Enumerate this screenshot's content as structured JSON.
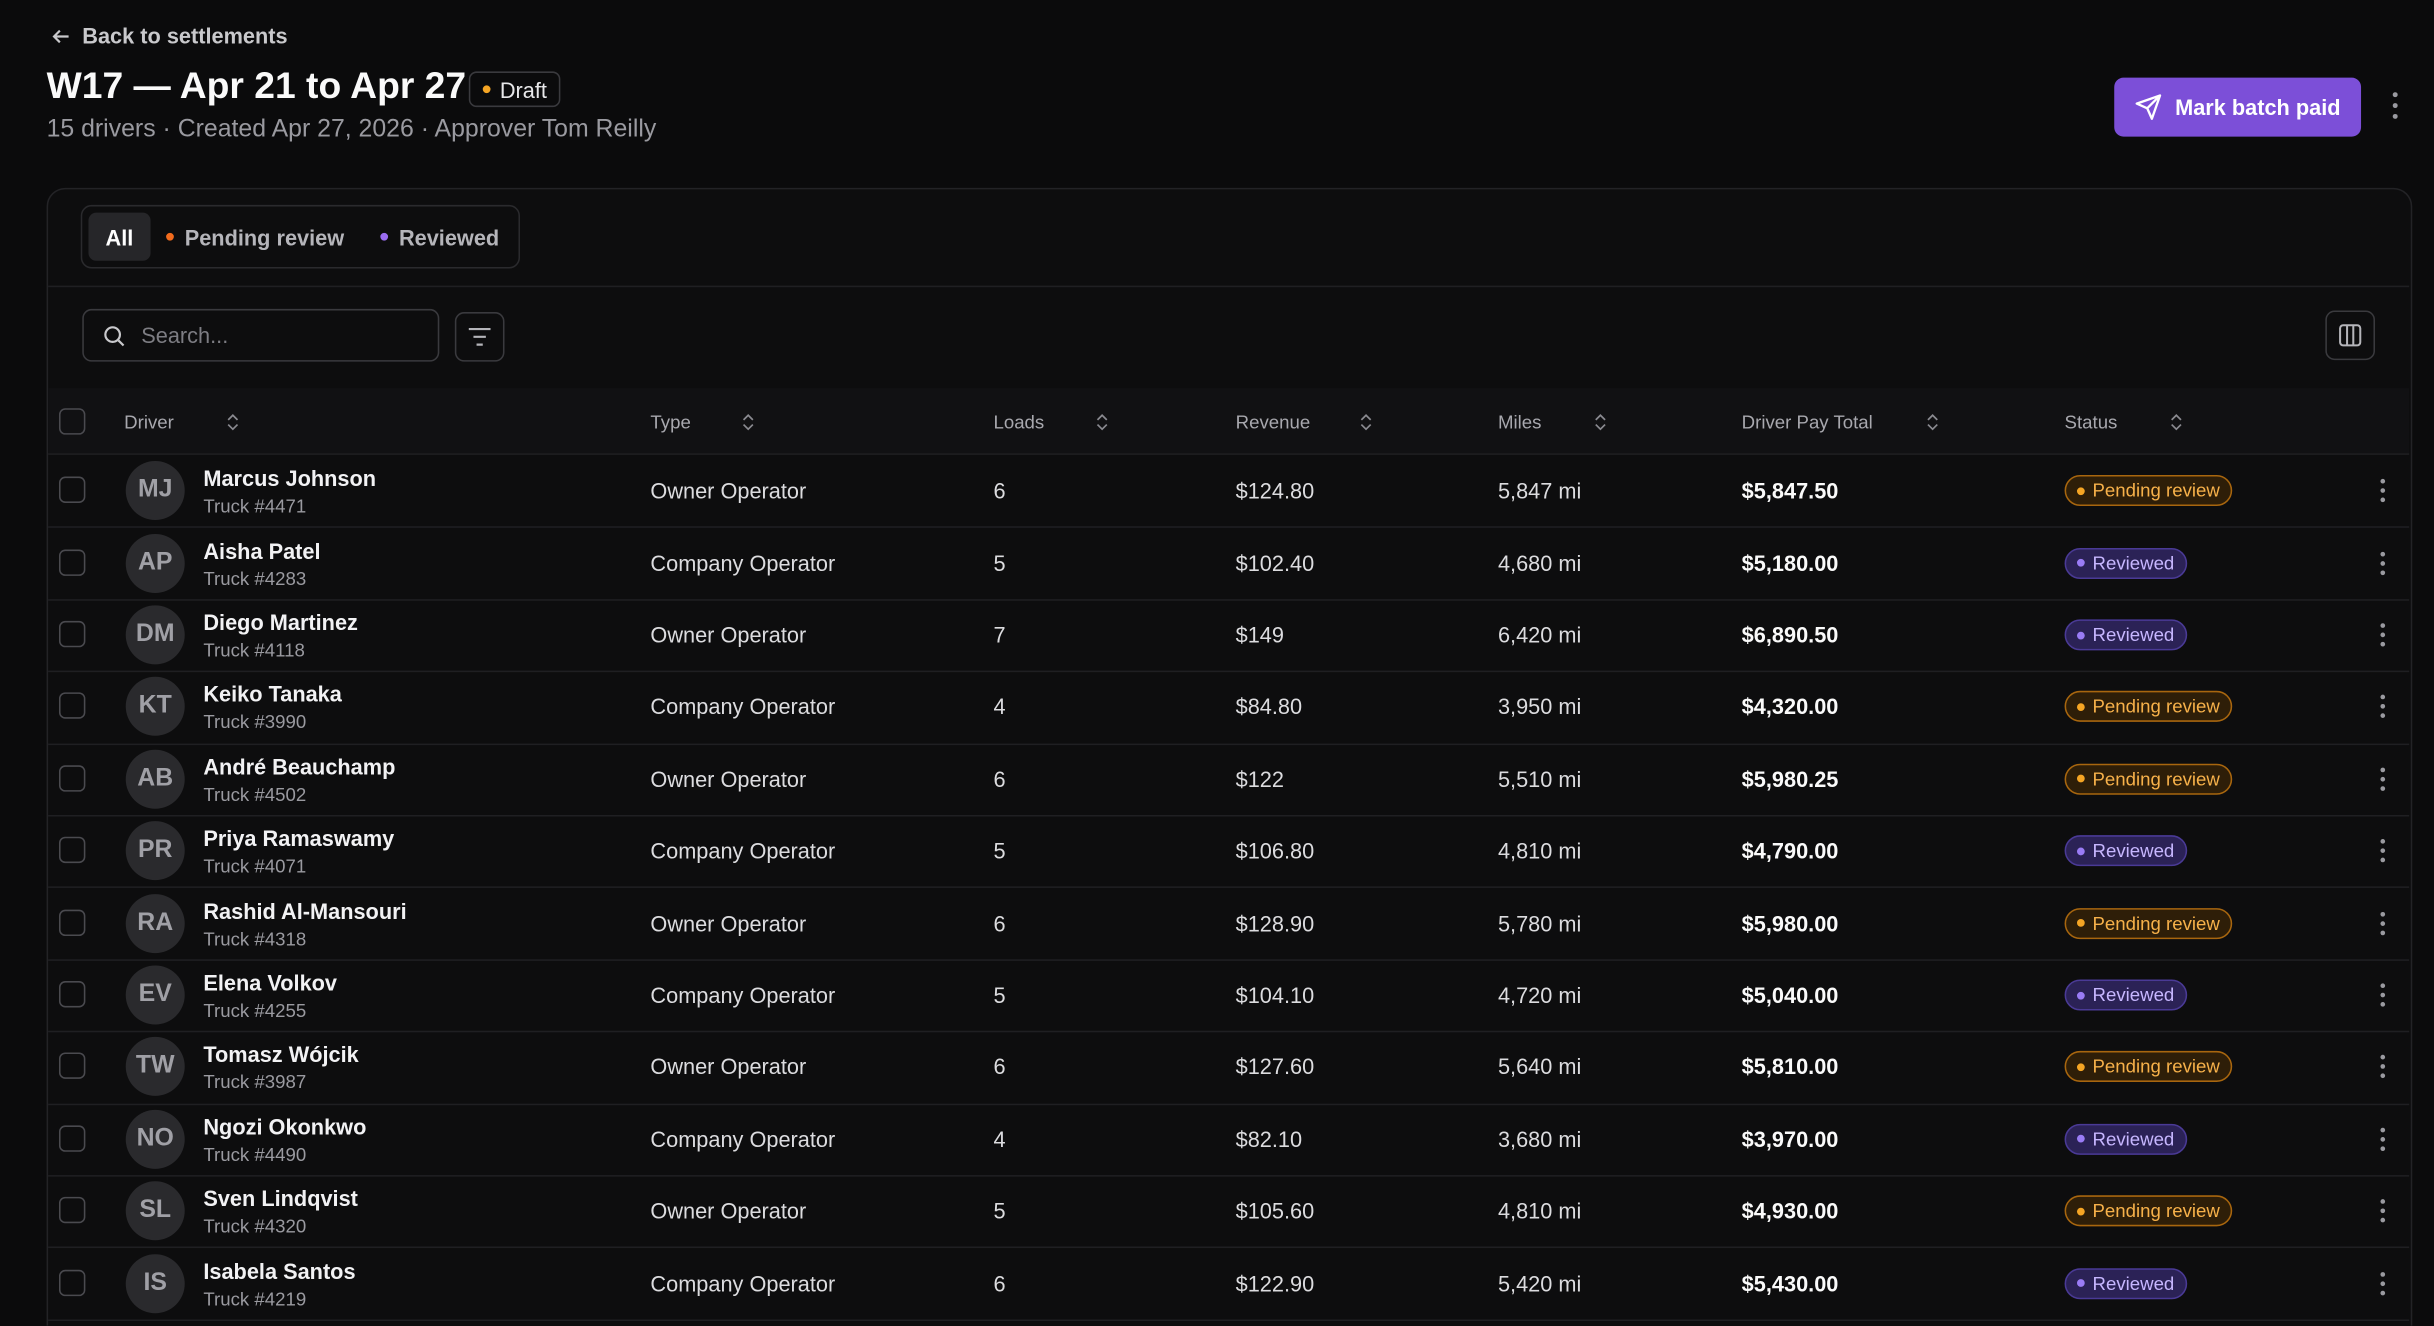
{
  "header": {
    "back": "Back to settlements",
    "title": "W17 — Apr 21 to Apr 27",
    "badge": "Draft",
    "meta": "15 drivers · Created Apr 27, 2026 · Approver Tom Reilly",
    "action": "Mark batch paid"
  },
  "tabs": [
    "All",
    "Pending review",
    "Reviewed"
  ],
  "search": {
    "placeholder": "Search..."
  },
  "table": {
    "columns": [
      "Driver",
      "Type",
      "Loads",
      "Revenue",
      "Miles",
      "Driver Pay Total",
      "Status"
    ],
    "rows": [
      {
        "initials": "MJ",
        "name": "Marcus Johnson",
        "truck": "Truck #4471",
        "type": "Owner Operator",
        "loads": "6",
        "revenue": "$124.80",
        "miles": "5,847 mi",
        "pay": "$5,847.50",
        "status": "Pending review"
      },
      {
        "initials": "AP",
        "name": "Aisha Patel",
        "truck": "Truck #4283",
        "type": "Company Operator",
        "loads": "5",
        "revenue": "$102.40",
        "miles": "4,680 mi",
        "pay": "$5,180.00",
        "status": "Reviewed"
      },
      {
        "initials": "DM",
        "name": "Diego Martinez",
        "truck": "Truck #4118",
        "type": "Owner Operator",
        "loads": "7",
        "revenue": "$149",
        "miles": "6,420 mi",
        "pay": "$6,890.50",
        "status": "Reviewed"
      },
      {
        "initials": "KT",
        "name": "Keiko Tanaka",
        "truck": "Truck #3990",
        "type": "Company Operator",
        "loads": "4",
        "revenue": "$84.80",
        "miles": "3,950 mi",
        "pay": "$4,320.00",
        "status": "Pending review"
      },
      {
        "initials": "AB",
        "name": "André Beauchamp",
        "truck": "Truck #4502",
        "type": "Owner Operator",
        "loads": "6",
        "revenue": "$122",
        "miles": "5,510 mi",
        "pay": "$5,980.25",
        "status": "Pending review"
      },
      {
        "initials": "PR",
        "name": "Priya Ramaswamy",
        "truck": "Truck #4071",
        "type": "Company Operator",
        "loads": "5",
        "revenue": "$106.80",
        "miles": "4,810 mi",
        "pay": "$4,790.00",
        "status": "Reviewed"
      },
      {
        "initials": "RA",
        "name": "Rashid Al-Mansouri",
        "truck": "Truck #4318",
        "type": "Owner Operator",
        "loads": "6",
        "revenue": "$128.90",
        "miles": "5,780 mi",
        "pay": "$5,980.00",
        "status": "Pending review"
      },
      {
        "initials": "EV",
        "name": "Elena Volkov",
        "truck": "Truck #4255",
        "type": "Company Operator",
        "loads": "5",
        "revenue": "$104.10",
        "miles": "4,720 mi",
        "pay": "$5,040.00",
        "status": "Reviewed"
      },
      {
        "initials": "TW",
        "name": "Tomasz Wójcik",
        "truck": "Truck #3987",
        "type": "Owner Operator",
        "loads": "6",
        "revenue": "$127.60",
        "miles": "5,640 mi",
        "pay": "$5,810.00",
        "status": "Pending review"
      },
      {
        "initials": "NO",
        "name": "Ngozi Okonkwo",
        "truck": "Truck #4490",
        "type": "Company Operator",
        "loads": "4",
        "revenue": "$82.10",
        "miles": "3,680 mi",
        "pay": "$3,970.00",
        "status": "Reviewed"
      },
      {
        "initials": "SL",
        "name": "Sven Lindqvist",
        "truck": "Truck #4320",
        "type": "Owner Operator",
        "loads": "5",
        "revenue": "$105.60",
        "miles": "4,810 mi",
        "pay": "$4,930.00",
        "status": "Pending review"
      },
      {
        "initials": "IS",
        "name": "Isabela Santos",
        "truck": "Truck #4219",
        "type": "Company Operator",
        "loads": "6",
        "revenue": "$122.90",
        "miles": "5,420 mi",
        "pay": "$5,430.00",
        "status": "Reviewed"
      }
    ]
  }
}
